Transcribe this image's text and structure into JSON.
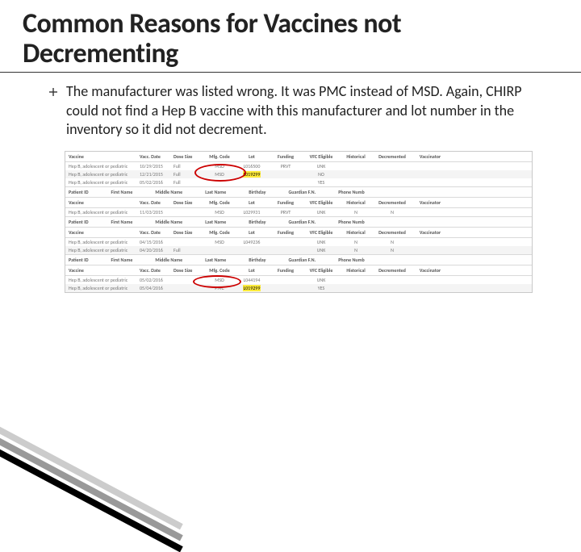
{
  "title": "Common Reasons for Vaccines not Decrementing",
  "bullet_text": "The manufacturer was listed wrong.  It was PMC instead of MSD.  Again, CHIRP could not find a Hep B vaccine with this manufacturer and lot number in the inventory so it did not decrement.",
  "columns": [
    "Vaccine",
    "Vacc. Date",
    "Dose Size",
    "Mfg. Code",
    "Lot",
    "Funding",
    "VFC Eligible",
    "Historical",
    "Decremented",
    "Vaccinator"
  ],
  "patient_headers": [
    "Patient ID",
    "First Name",
    "Middle Name",
    "Last Name",
    "Birthday",
    "Guardian F.N.",
    "Phone Numb"
  ],
  "sections": [
    {
      "rows": [
        {
          "vaccine": "Hep B, adolescent or pediatric",
          "date": "10/29/2015",
          "dose": "Full",
          "mfg": "MSD",
          "lot": "L016500",
          "fund": "PRVT",
          "vfc": "UNK",
          "hist": "",
          "dec": "",
          "vtor": ""
        },
        {
          "vaccine": "Hep B, adolescent or pediatric",
          "date": "12/21/2015",
          "dose": "Full",
          "mfg": "MSD",
          "lot": "L019299",
          "fund": "",
          "vfc": "NO",
          "hist": "",
          "dec": "",
          "vtor": "",
          "hl_lot": true
        },
        {
          "vaccine": "Hep B, adolescent or pediatric",
          "date": "05/02/2016",
          "dose": "Full",
          "mfg": "",
          "lot": "",
          "fund": "",
          "vfc": "YES",
          "hist": "",
          "dec": "",
          "vtor": ""
        }
      ],
      "circle": true
    },
    {
      "rows": [
        {
          "vaccine": "Hep B, adolescent or pediatric",
          "date": "11/03/2015",
          "dose": "",
          "mfg": "MSD",
          "lot": "L029931",
          "fund": "PRVT",
          "vfc": "UNK",
          "hist": "N",
          "dec": "N",
          "vtor": ""
        }
      ]
    },
    {
      "rows": [
        {
          "vaccine": "Hep B, adolescent or pediatric",
          "date": "04/15/2016",
          "dose": "",
          "mfg": "MSD",
          "lot": "L049236",
          "fund": "",
          "vfc": "UNK",
          "hist": "N",
          "dec": "N",
          "vtor": ""
        },
        {
          "vaccine": "Hep B, adolescent or pediatric",
          "date": "04/20/2016",
          "dose": "Full",
          "mfg": "",
          "lot": "",
          "fund": "",
          "vfc": "UNK",
          "hist": "N",
          "dec": "N",
          "vtor": ""
        }
      ]
    },
    {
      "rows": [
        {
          "vaccine": "Hep B, adolescent or pediatric",
          "date": "05/02/2016",
          "dose": "",
          "mfg": "MSD",
          "lot": "L044194",
          "fund": "",
          "vfc": "UNK",
          "hist": "",
          "dec": "",
          "vtor": ""
        },
        {
          "vaccine": "Hep B, adolescent or pediatric",
          "date": "05/04/2016",
          "dose": "",
          "mfg": "PMC",
          "lot": "L019299",
          "fund": "",
          "vfc": "YES",
          "hist": "",
          "dec": "",
          "vtor": "",
          "hl_lot": true
        }
      ],
      "circle": true
    }
  ],
  "decor_colors": [
    "#cccccc",
    "#999999",
    "#000000"
  ]
}
